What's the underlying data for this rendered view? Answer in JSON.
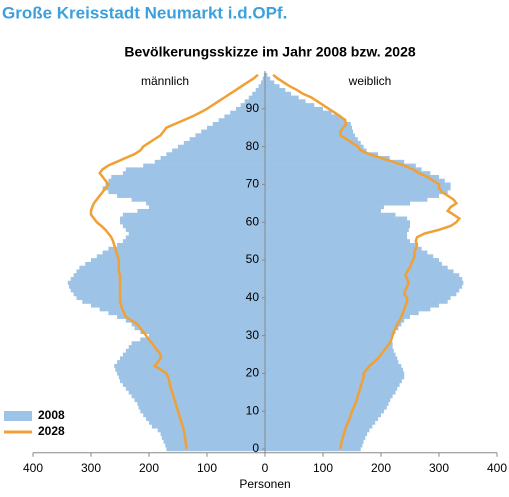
{
  "page_title": "Große Kreisstadt Neumarkt i.d.OPf.",
  "chart_data": {
    "type": "pyramid",
    "title": "Bevölkerungsskizze im Jahr 2008 bzw. 2028",
    "left_label": "männlich",
    "right_label": "weiblich",
    "xlabel": "Personen",
    "ages": [
      0,
      1,
      2,
      3,
      4,
      5,
      6,
      7,
      8,
      9,
      10,
      11,
      12,
      13,
      14,
      15,
      16,
      17,
      18,
      19,
      20,
      21,
      22,
      23,
      24,
      25,
      26,
      27,
      28,
      29,
      30,
      31,
      32,
      33,
      34,
      35,
      36,
      37,
      38,
      39,
      40,
      41,
      42,
      43,
      44,
      45,
      46,
      47,
      48,
      49,
      50,
      51,
      52,
      53,
      54,
      55,
      56,
      57,
      58,
      59,
      60,
      61,
      62,
      63,
      64,
      65,
      66,
      67,
      68,
      69,
      70,
      71,
      72,
      73,
      74,
      75,
      76,
      77,
      78,
      79,
      80,
      81,
      82,
      83,
      84,
      85,
      86,
      87,
      88,
      89,
      90,
      91,
      92,
      93,
      94,
      95,
      96,
      97,
      98,
      99
    ],
    "series": [
      {
        "name": "2008",
        "color": "#9dc3e6",
        "mark": "bar",
        "male": [
          170,
          172,
          175,
          178,
          180,
          185,
          195,
          200,
          205,
          210,
          215,
          218,
          220,
          225,
          230,
          235,
          240,
          245,
          250,
          252,
          255,
          258,
          260,
          255,
          250,
          245,
          240,
          235,
          230,
          215,
          200,
          215,
          225,
          230,
          240,
          255,
          270,
          285,
          300,
          315,
          325,
          330,
          335,
          338,
          340,
          335,
          330,
          325,
          320,
          310,
          300,
          290,
          280,
          270,
          255,
          245,
          240,
          235,
          240,
          245,
          250,
          250,
          245,
          220,
          200,
          205,
          230,
          255,
          270,
          280,
          275,
          270,
          265,
          245,
          240,
          210,
          190,
          180,
          170,
          160,
          150,
          140,
          130,
          120,
          110,
          100,
          90,
          80,
          70,
          60,
          50,
          42,
          35,
          28,
          22,
          16,
          11,
          7,
          4,
          2
        ],
        "female": [
          165,
          168,
          170,
          173,
          176,
          180,
          185,
          190,
          195,
          200,
          205,
          210,
          213,
          216,
          220,
          225,
          228,
          232,
          236,
          240,
          240,
          238,
          235,
          230,
          228,
          225,
          222,
          220,
          220,
          218,
          220,
          225,
          230,
          235,
          240,
          250,
          265,
          285,
          300,
          315,
          320,
          330,
          335,
          340,
          342,
          340,
          335,
          325,
          315,
          305,
          300,
          290,
          280,
          270,
          260,
          250,
          245,
          245,
          248,
          250,
          250,
          245,
          225,
          200,
          205,
          250,
          280,
          300,
          315,
          320,
          320,
          310,
          300,
          285,
          270,
          260,
          240,
          215,
          195,
          175,
          170,
          165,
          160,
          155,
          152,
          150,
          148,
          140,
          130,
          115,
          100,
          85,
          70,
          58,
          45,
          35,
          25,
          16,
          9,
          4
        ]
      },
      {
        "name": "2028",
        "color": "#f0a035",
        "mark": "line",
        "male": [
          135,
          136,
          137,
          138,
          139,
          140,
          142,
          144,
          146,
          148,
          150,
          152,
          154,
          156,
          158,
          160,
          162,
          164,
          165,
          167,
          170,
          180,
          190,
          185,
          180,
          180,
          185,
          190,
          195,
          200,
          205,
          210,
          215,
          220,
          230,
          240,
          243,
          246,
          248,
          250,
          250,
          250,
          250,
          250,
          250,
          250,
          250,
          252,
          252,
          252,
          252,
          254,
          256,
          258,
          260,
          262,
          265,
          270,
          275,
          282,
          290,
          295,
          300,
          300,
          298,
          295,
          290,
          285,
          280,
          275,
          270,
          275,
          280,
          285,
          280,
          270,
          255,
          240,
          225,
          215,
          210,
          200,
          190,
          180,
          175,
          170,
          155,
          140,
          125,
          112,
          100,
          90,
          80,
          70,
          60,
          50,
          40,
          30,
          20,
          12
        ],
        "female": [
          130,
          131,
          132,
          134,
          136,
          138,
          140,
          143,
          146,
          148,
          150,
          153,
          156,
          158,
          160,
          162,
          164,
          166,
          168,
          170,
          170,
          175,
          180,
          188,
          195,
          200,
          205,
          210,
          215,
          218,
          220,
          222,
          225,
          228,
          232,
          235,
          238,
          240,
          242,
          245,
          245,
          240,
          242,
          245,
          248,
          245,
          242,
          245,
          250,
          252,
          255,
          258,
          257,
          260,
          262,
          260,
          262,
          275,
          300,
          320,
          330,
          335,
          325,
          315,
          320,
          330,
          325,
          315,
          305,
          300,
          300,
          290,
          280,
          265,
          255,
          240,
          220,
          200,
          180,
          165,
          160,
          150,
          140,
          130,
          130,
          135,
          140,
          138,
          130,
          120,
          110,
          100,
          90,
          80,
          65,
          55,
          42,
          32,
          22,
          14
        ]
      }
    ],
    "xlim": [
      -400,
      400
    ],
    "xticks": [
      {
        "value": -400,
        "label": "400"
      },
      {
        "value": -300,
        "label": "300"
      },
      {
        "value": -200,
        "label": "200"
      },
      {
        "value": -100,
        "label": "100"
      },
      0,
      100,
      200,
      300,
      400
    ],
    "ylim": [
      -1,
      100
    ],
    "yticks": [
      0,
      10,
      20,
      30,
      40,
      50,
      60,
      70,
      80,
      90
    ],
    "legend": "lower-left"
  }
}
